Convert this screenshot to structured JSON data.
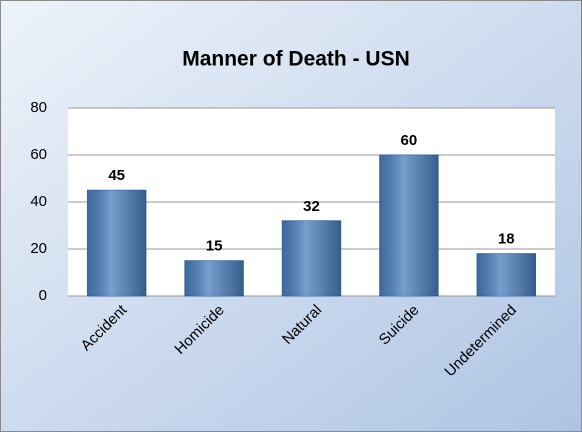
{
  "chart_data": {
    "type": "bar",
    "title": "Manner of Death - USN",
    "categories": [
      "Accident",
      "Homicide",
      "Natural",
      "Suicide",
      "Undetermined"
    ],
    "values": [
      45,
      15,
      32,
      60,
      18
    ],
    "color": "#4a7ebb",
    "ylim": [
      0,
      80
    ],
    "yticks": [
      0,
      20,
      40,
      60,
      80
    ],
    "grid": true
  }
}
